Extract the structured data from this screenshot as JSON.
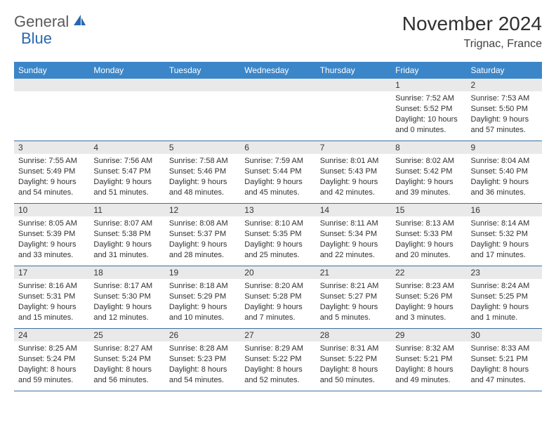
{
  "brand": {
    "part1": "General",
    "part2": "Blue"
  },
  "title": "November 2024",
  "location": "Trignac, France",
  "colors": {
    "header_bg": "#3b86c8",
    "daynum_bg": "#e9e9e9",
    "rule": "#3b6fa0",
    "text": "#303030",
    "brand_gray": "#5a5a5a",
    "brand_blue": "#2968b0"
  },
  "weekdays": [
    "Sunday",
    "Monday",
    "Tuesday",
    "Wednesday",
    "Thursday",
    "Friday",
    "Saturday"
  ],
  "weeks": [
    [
      {
        "n": "",
        "sr": "",
        "ss": "",
        "dl": ""
      },
      {
        "n": "",
        "sr": "",
        "ss": "",
        "dl": ""
      },
      {
        "n": "",
        "sr": "",
        "ss": "",
        "dl": ""
      },
      {
        "n": "",
        "sr": "",
        "ss": "",
        "dl": ""
      },
      {
        "n": "",
        "sr": "",
        "ss": "",
        "dl": ""
      },
      {
        "n": "1",
        "sr": "Sunrise: 7:52 AM",
        "ss": "Sunset: 5:52 PM",
        "dl": "Daylight: 10 hours and 0 minutes."
      },
      {
        "n": "2",
        "sr": "Sunrise: 7:53 AM",
        "ss": "Sunset: 5:50 PM",
        "dl": "Daylight: 9 hours and 57 minutes."
      }
    ],
    [
      {
        "n": "3",
        "sr": "Sunrise: 7:55 AM",
        "ss": "Sunset: 5:49 PM",
        "dl": "Daylight: 9 hours and 54 minutes."
      },
      {
        "n": "4",
        "sr": "Sunrise: 7:56 AM",
        "ss": "Sunset: 5:47 PM",
        "dl": "Daylight: 9 hours and 51 minutes."
      },
      {
        "n": "5",
        "sr": "Sunrise: 7:58 AM",
        "ss": "Sunset: 5:46 PM",
        "dl": "Daylight: 9 hours and 48 minutes."
      },
      {
        "n": "6",
        "sr": "Sunrise: 7:59 AM",
        "ss": "Sunset: 5:44 PM",
        "dl": "Daylight: 9 hours and 45 minutes."
      },
      {
        "n": "7",
        "sr": "Sunrise: 8:01 AM",
        "ss": "Sunset: 5:43 PM",
        "dl": "Daylight: 9 hours and 42 minutes."
      },
      {
        "n": "8",
        "sr": "Sunrise: 8:02 AM",
        "ss": "Sunset: 5:42 PM",
        "dl": "Daylight: 9 hours and 39 minutes."
      },
      {
        "n": "9",
        "sr": "Sunrise: 8:04 AM",
        "ss": "Sunset: 5:40 PM",
        "dl": "Daylight: 9 hours and 36 minutes."
      }
    ],
    [
      {
        "n": "10",
        "sr": "Sunrise: 8:05 AM",
        "ss": "Sunset: 5:39 PM",
        "dl": "Daylight: 9 hours and 33 minutes."
      },
      {
        "n": "11",
        "sr": "Sunrise: 8:07 AM",
        "ss": "Sunset: 5:38 PM",
        "dl": "Daylight: 9 hours and 31 minutes."
      },
      {
        "n": "12",
        "sr": "Sunrise: 8:08 AM",
        "ss": "Sunset: 5:37 PM",
        "dl": "Daylight: 9 hours and 28 minutes."
      },
      {
        "n": "13",
        "sr": "Sunrise: 8:10 AM",
        "ss": "Sunset: 5:35 PM",
        "dl": "Daylight: 9 hours and 25 minutes."
      },
      {
        "n": "14",
        "sr": "Sunrise: 8:11 AM",
        "ss": "Sunset: 5:34 PM",
        "dl": "Daylight: 9 hours and 22 minutes."
      },
      {
        "n": "15",
        "sr": "Sunrise: 8:13 AM",
        "ss": "Sunset: 5:33 PM",
        "dl": "Daylight: 9 hours and 20 minutes."
      },
      {
        "n": "16",
        "sr": "Sunrise: 8:14 AM",
        "ss": "Sunset: 5:32 PM",
        "dl": "Daylight: 9 hours and 17 minutes."
      }
    ],
    [
      {
        "n": "17",
        "sr": "Sunrise: 8:16 AM",
        "ss": "Sunset: 5:31 PM",
        "dl": "Daylight: 9 hours and 15 minutes."
      },
      {
        "n": "18",
        "sr": "Sunrise: 8:17 AM",
        "ss": "Sunset: 5:30 PM",
        "dl": "Daylight: 9 hours and 12 minutes."
      },
      {
        "n": "19",
        "sr": "Sunrise: 8:18 AM",
        "ss": "Sunset: 5:29 PM",
        "dl": "Daylight: 9 hours and 10 minutes."
      },
      {
        "n": "20",
        "sr": "Sunrise: 8:20 AM",
        "ss": "Sunset: 5:28 PM",
        "dl": "Daylight: 9 hours and 7 minutes."
      },
      {
        "n": "21",
        "sr": "Sunrise: 8:21 AM",
        "ss": "Sunset: 5:27 PM",
        "dl": "Daylight: 9 hours and 5 minutes."
      },
      {
        "n": "22",
        "sr": "Sunrise: 8:23 AM",
        "ss": "Sunset: 5:26 PM",
        "dl": "Daylight: 9 hours and 3 minutes."
      },
      {
        "n": "23",
        "sr": "Sunrise: 8:24 AM",
        "ss": "Sunset: 5:25 PM",
        "dl": "Daylight: 9 hours and 1 minute."
      }
    ],
    [
      {
        "n": "24",
        "sr": "Sunrise: 8:25 AM",
        "ss": "Sunset: 5:24 PM",
        "dl": "Daylight: 8 hours and 59 minutes."
      },
      {
        "n": "25",
        "sr": "Sunrise: 8:27 AM",
        "ss": "Sunset: 5:24 PM",
        "dl": "Daylight: 8 hours and 56 minutes."
      },
      {
        "n": "26",
        "sr": "Sunrise: 8:28 AM",
        "ss": "Sunset: 5:23 PM",
        "dl": "Daylight: 8 hours and 54 minutes."
      },
      {
        "n": "27",
        "sr": "Sunrise: 8:29 AM",
        "ss": "Sunset: 5:22 PM",
        "dl": "Daylight: 8 hours and 52 minutes."
      },
      {
        "n": "28",
        "sr": "Sunrise: 8:31 AM",
        "ss": "Sunset: 5:22 PM",
        "dl": "Daylight: 8 hours and 50 minutes."
      },
      {
        "n": "29",
        "sr": "Sunrise: 8:32 AM",
        "ss": "Sunset: 5:21 PM",
        "dl": "Daylight: 8 hours and 49 minutes."
      },
      {
        "n": "30",
        "sr": "Sunrise: 8:33 AM",
        "ss": "Sunset: 5:21 PM",
        "dl": "Daylight: 8 hours and 47 minutes."
      }
    ]
  ]
}
